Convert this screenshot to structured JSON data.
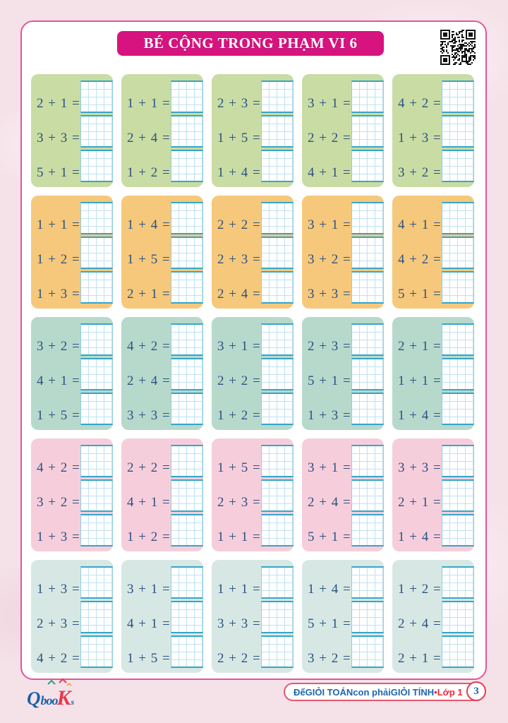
{
  "title": "BÉ CỘNG TRONG PHẠM VI 6",
  "colors": {
    "banner": "#d6137f",
    "panel_border": "#e0569d",
    "equation_text": "#2b5180",
    "row_palettes": [
      "#c9dca4",
      "#f6c87b",
      "#b7d9cc",
      "#f6cedb",
      "#d7e8e4"
    ]
  },
  "grid": {
    "rows": [
      {
        "color": "#c9dca4",
        "cards": [
          [
            "2 + 1 =",
            "3 + 3 =",
            "5 + 1 ="
          ],
          [
            "1 + 1 =",
            "2 + 4 =",
            "1 + 2 ="
          ],
          [
            "2 + 3 =",
            "1 + 5 =",
            "1 + 4 ="
          ],
          [
            "3 + 1 =",
            "2 + 2 =",
            "4 + 1 ="
          ],
          [
            "4 + 2 =",
            "1 + 3 =",
            "3 + 2 ="
          ]
        ]
      },
      {
        "color": "#f6c87b",
        "cards": [
          [
            "1 + 1 =",
            "1 + 2 =",
            "1 + 3 ="
          ],
          [
            "1 + 4 =",
            "1 + 5 =",
            "2 + 1 ="
          ],
          [
            "2 + 2 =",
            "2 + 3 =",
            "2 + 4 ="
          ],
          [
            "3 + 1 =",
            "3 + 2 =",
            "3 + 3 ="
          ],
          [
            "4 + 1 =",
            "4 + 2 =",
            "5 + 1 ="
          ]
        ]
      },
      {
        "color": "#b7d9cc",
        "cards": [
          [
            "3 + 2 =",
            "4 + 1 =",
            "1 + 5 ="
          ],
          [
            "4 + 2 =",
            "2 + 4 =",
            "3 + 3 ="
          ],
          [
            "3 + 1 =",
            "2 + 2 =",
            "1 + 2 ="
          ],
          [
            "2 + 3 =",
            "5 + 1 =",
            "1 + 3 ="
          ],
          [
            "2 + 1 =",
            "1 + 1 =",
            "1 + 4 ="
          ]
        ]
      },
      {
        "color": "#f6cedb",
        "cards": [
          [
            "4 + 2 =",
            "3 + 2 =",
            "1 + 3 ="
          ],
          [
            "2 + 2 =",
            "4 + 1 =",
            "1 + 2 ="
          ],
          [
            "1 + 5 =",
            "2 + 3 =",
            "1 + 1 ="
          ],
          [
            "3 + 1 =",
            "2 + 4 =",
            "5 + 1 ="
          ],
          [
            "3 + 3 =",
            "2 + 1 =",
            "1 + 4 ="
          ]
        ]
      },
      {
        "color": "#d7e8e4",
        "cards": [
          [
            "1 + 3 =",
            "2 + 3 =",
            "4 + 2 ="
          ],
          [
            "3 + 1 =",
            "4 + 1 =",
            "1 + 5 ="
          ],
          [
            "1 + 1 =",
            "3 + 3 =",
            "2 + 2 ="
          ],
          [
            "1 + 4 =",
            "5 + 1 =",
            "3 + 2 ="
          ],
          [
            "1 + 2 =",
            "2 + 4 =",
            "2 + 1 ="
          ]
        ]
      }
    ]
  },
  "footer": {
    "logo": {
      "q": "Q",
      "boo": "boo",
      "k": "K",
      "s": "s"
    },
    "badge_parts": [
      {
        "text": "Để ",
        "style": "blue"
      },
      {
        "text": "GIỎI TOÁN",
        "style": "blue"
      },
      {
        "text": " con phải ",
        "style": "blue"
      },
      {
        "text": "GIỎI TÍNH",
        "style": "blue"
      },
      {
        "text": " • ",
        "style": "red"
      },
      {
        "text": "Lớp 1",
        "style": "red"
      }
    ],
    "page_number": "3"
  }
}
